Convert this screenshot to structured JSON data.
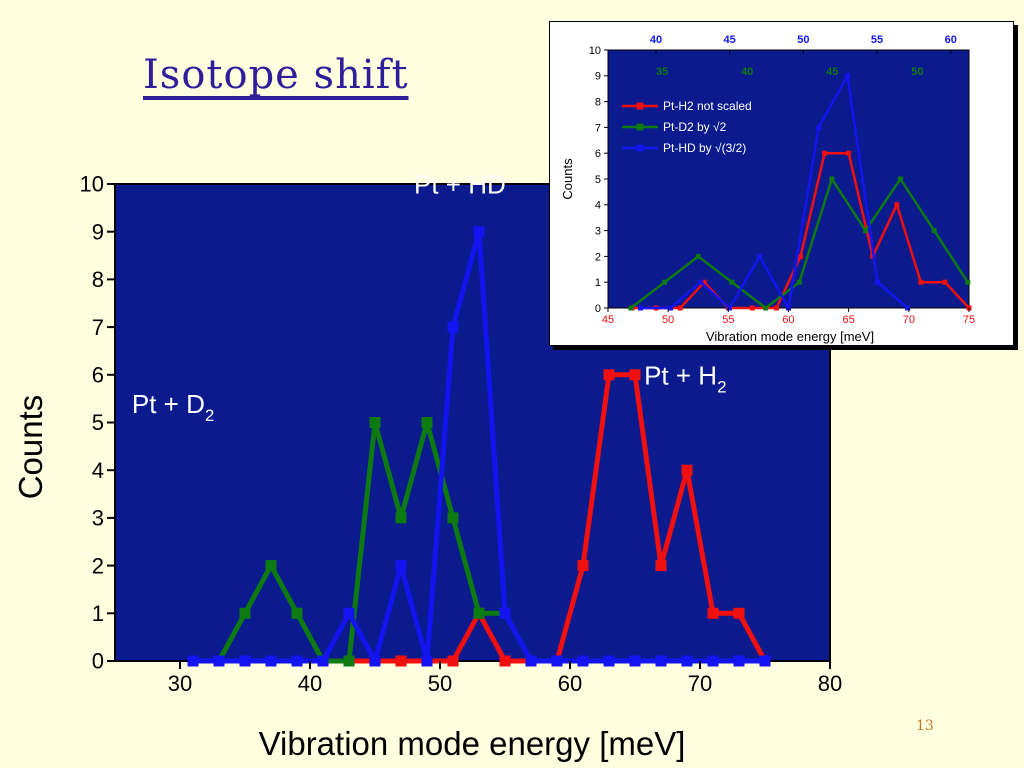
{
  "slide": {
    "title": "Isotope shift",
    "page_number": "13"
  },
  "colors": {
    "background": "#FFFFE0",
    "plot_bg": "#0B1A8C",
    "red": "#F01010",
    "green": "#0E7A12",
    "blue": "#1414F0",
    "title": "#2E1E9A"
  },
  "chart_data": [
    {
      "type": "line",
      "xlabel": "Vibration mode energy [meV]",
      "ylabel": "Counts",
      "xlim": [
        25,
        80
      ],
      "ylim": [
        0,
        10
      ],
      "xticks": [
        30,
        40,
        50,
        60,
        70,
        80
      ],
      "yticks": [
        0,
        1,
        2,
        3,
        4,
        5,
        6,
        7,
        8,
        9,
        10
      ],
      "grid": false,
      "annotations": [
        {
          "text": "Pt + HD",
          "x": 48,
          "y": 9.8
        },
        {
          "text": "Pt + D",
          "sub": "2",
          "x": 26.3,
          "y": 5.2
        },
        {
          "text": "Pt + H",
          "sub": "2",
          "x": 65.7,
          "y": 5.8
        }
      ],
      "series": [
        {
          "color": "#F01010",
          "x": [
            31,
            33,
            35,
            37,
            39,
            41,
            43,
            45,
            47,
            49,
            51,
            53,
            55,
            57,
            59,
            61,
            63,
            65,
            67,
            69,
            71,
            73,
            75
          ],
          "y": [
            0,
            0,
            0,
            0,
            0,
            0,
            0,
            0,
            0,
            0,
            0,
            1,
            0,
            0,
            0,
            2,
            6,
            6,
            2,
            4,
            1,
            1,
            0
          ]
        },
        {
          "color": "#0E7A12",
          "x": [
            31,
            33,
            35,
            37,
            39,
            41,
            43,
            45,
            47,
            49,
            51,
            53,
            55,
            57,
            59,
            61,
            63,
            65,
            67,
            69,
            71,
            73,
            75
          ],
          "y": [
            0,
            0,
            1,
            2,
            1,
            0,
            0,
            5,
            3,
            5,
            3,
            1,
            1,
            0,
            0,
            0,
            0,
            0,
            0,
            0,
            0,
            0,
            0
          ]
        },
        {
          "color": "#1414F0",
          "x": [
            31,
            33,
            35,
            37,
            39,
            41,
            43,
            45,
            47,
            49,
            51,
            53,
            55,
            57,
            59,
            61,
            63,
            65,
            67,
            69,
            71,
            73,
            75
          ],
          "y": [
            0,
            0,
            0,
            0,
            0,
            0,
            1,
            0,
            2,
            0,
            7,
            9,
            1,
            0,
            0,
            0,
            0,
            0,
            0,
            0,
            0,
            0,
            0
          ]
        }
      ]
    },
    {
      "type": "line",
      "xlabel": "Vibration mode energy [meV]",
      "ylabel": "Counts",
      "xlim": [
        45,
        75
      ],
      "ylim": [
        0,
        10
      ],
      "xticks": [
        45,
        50,
        55,
        60,
        65,
        70,
        75
      ],
      "yticks": [
        0,
        1,
        2,
        3,
        4,
        5,
        6,
        7,
        8,
        9,
        10
      ],
      "top_axis_blue": {
        "values": [
          40,
          45,
          50,
          55,
          60
        ],
        "color": "#1414F0"
      },
      "top_axis_green": {
        "values": [
          35,
          40,
          45,
          50
        ],
        "color": "#0E7A12"
      },
      "legend_position": "top-left",
      "grid": false,
      "series": [
        {
          "name": "Pt-H2 not scaled",
          "color": "#F01010",
          "x": [
            47,
            49,
            51,
            53,
            55,
            57,
            59,
            61,
            63,
            65,
            67,
            69,
            71,
            73,
            75
          ],
          "y": [
            0,
            0,
            0,
            1,
            0,
            0,
            0,
            2,
            6,
            6,
            2,
            4,
            1,
            1,
            0
          ]
        },
        {
          "name": "Pt-D2 by √2",
          "color": "#0E7A12",
          "x": [
            46.9,
            49.7,
            52.5,
            55.3,
            58.1,
            60.9,
            63.6,
            66.4,
            69.3,
            72.1,
            74.9
          ],
          "y": [
            0,
            1,
            2,
            1,
            0,
            1,
            5,
            3,
            5,
            3,
            1
          ]
        },
        {
          "name": "Pt-HD by √(3/2)",
          "color": "#1414F0",
          "x": [
            47.7,
            50.2,
            52.7,
            55.1,
            57.6,
            60.0,
            62.5,
            64.9,
            67.4,
            69.9
          ],
          "y": [
            0,
            0,
            1,
            0,
            2,
            0,
            7,
            9,
            1,
            0
          ]
        }
      ]
    }
  ]
}
